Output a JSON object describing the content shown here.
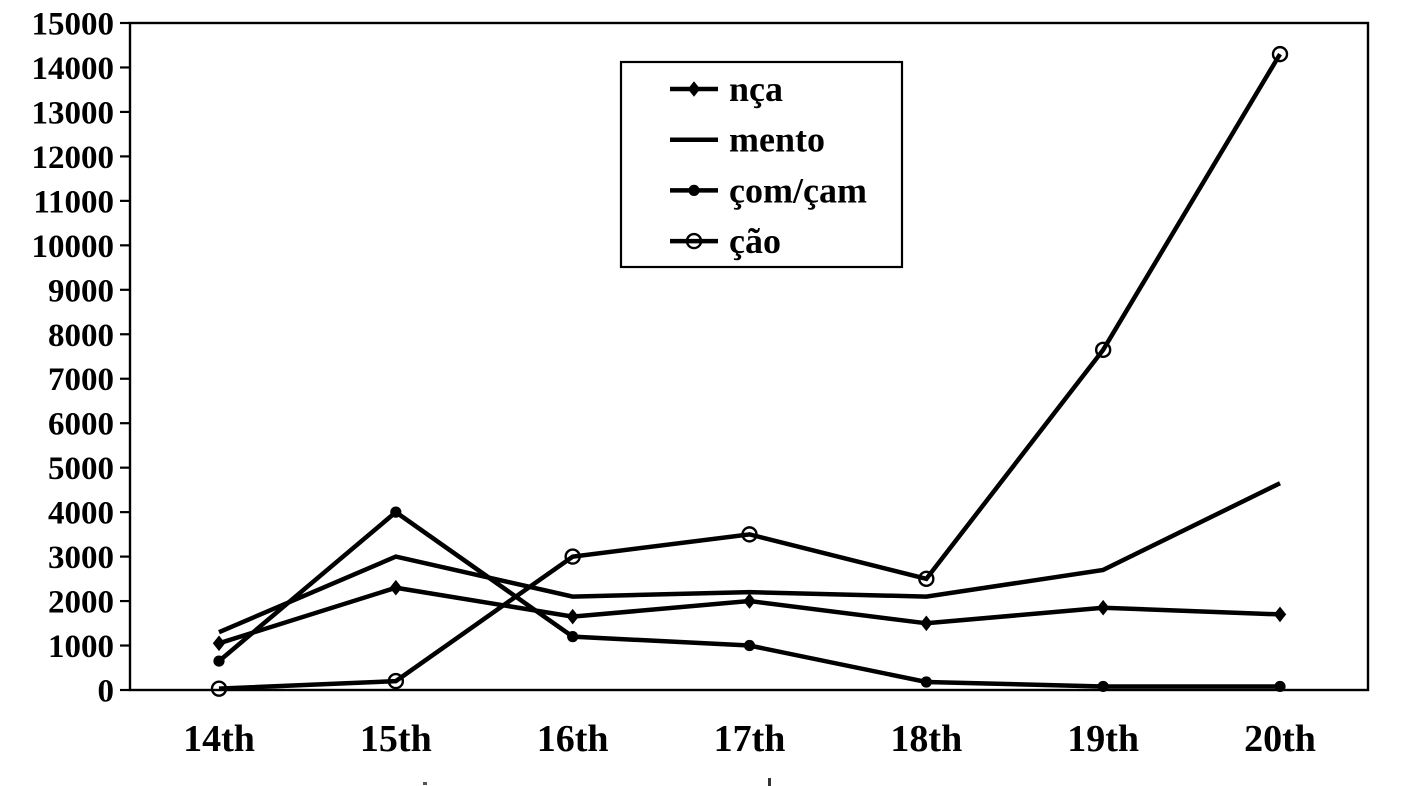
{
  "chart_data": {
    "type": "line",
    "title": "",
    "xlabel": "",
    "ylabel": "",
    "categories": [
      "14th",
      "15th",
      "16th",
      "17th",
      "18th",
      "19th",
      "20th"
    ],
    "series": [
      {
        "id": "nca",
        "name": "nça",
        "marker": "diamond-filled",
        "values": [
          1050,
          2300,
          1650,
          2000,
          1500,
          1850,
          1700
        ]
      },
      {
        "id": "mento",
        "name": "mento",
        "marker": "none",
        "values": [
          1300,
          3000,
          2100,
          2200,
          2100,
          2700,
          4650
        ]
      },
      {
        "id": "com-cam",
        "name": "çom/çam",
        "marker": "circle-filled",
        "values": [
          650,
          4000,
          1200,
          1000,
          180,
          80,
          80
        ]
      },
      {
        "id": "cao",
        "name": "ção",
        "marker": "circle-open",
        "values": [
          30,
          200,
          3000,
          3500,
          2500,
          7650,
          14300
        ]
      }
    ],
    "ylim": [
      0,
      15000
    ],
    "ytick_step": 1000,
    "ytick_labels": [
      "0",
      "1000",
      "2000",
      "3000",
      "4000",
      "5000",
      "6000",
      "7000",
      "8000",
      "9000",
      "10000",
      "11000",
      "12000",
      "13000",
      "14000",
      "15000"
    ],
    "grid": false,
    "legend_position": "top-center",
    "legend_border": true,
    "line_color": "#000000",
    "background_color": "#ffffff"
  }
}
